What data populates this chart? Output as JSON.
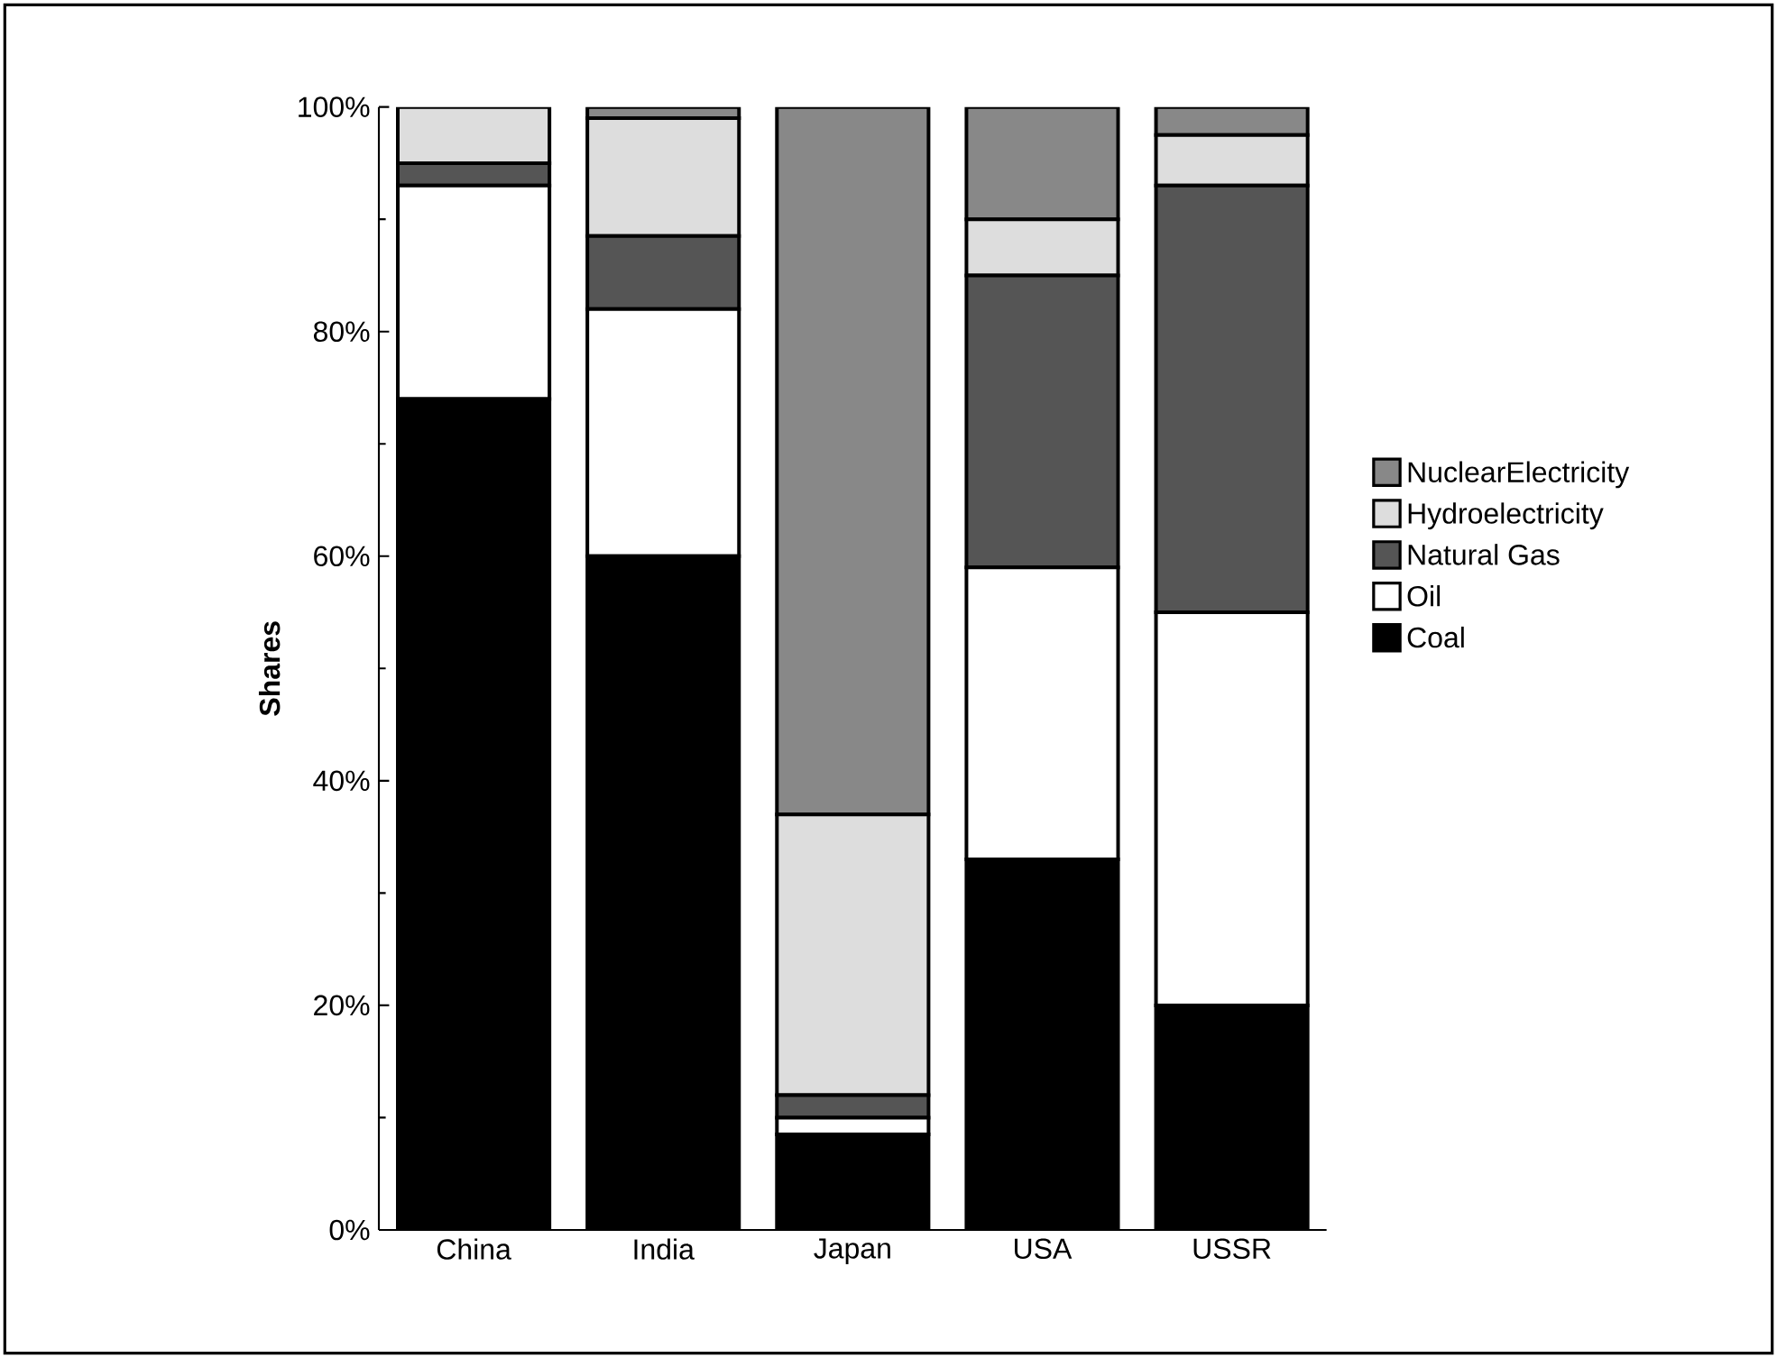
{
  "chart_data": {
    "type": "bar",
    "stacked": true,
    "ylabel": "Shares",
    "categories": [
      "China",
      "India",
      "Japan",
      "USA",
      "USSR"
    ],
    "series": [
      {
        "name": "Coal",
        "color": "#000000",
        "values": [
          74,
          60,
          8.5,
          33,
          20
        ]
      },
      {
        "name": "Oil",
        "color": "#ffffff",
        "values": [
          19,
          22,
          1.5,
          26,
          35
        ]
      },
      {
        "name": "Natural Gas",
        "color": "#555555",
        "values": [
          2,
          6.5,
          2,
          26,
          38
        ]
      },
      {
        "name": "Hydroelectricity",
        "color": "#dddddd",
        "values": [
          5,
          10.5,
          25,
          5,
          4.5
        ]
      },
      {
        "name": "NuclearElectricity",
        "color": "#888888",
        "values": [
          0,
          1,
          63,
          10,
          2.5
        ]
      }
    ],
    "ylim": [
      0,
      100
    ],
    "yticks": [
      {
        "value": 0,
        "label": "0%"
      },
      {
        "value": 20,
        "label": "20%"
      },
      {
        "value": 40,
        "label": "40%"
      },
      {
        "value": 60,
        "label": "60%"
      },
      {
        "value": 80,
        "label": "80%"
      },
      {
        "value": 100,
        "label": "100%"
      }
    ],
    "legend": "right",
    "grid": false
  }
}
